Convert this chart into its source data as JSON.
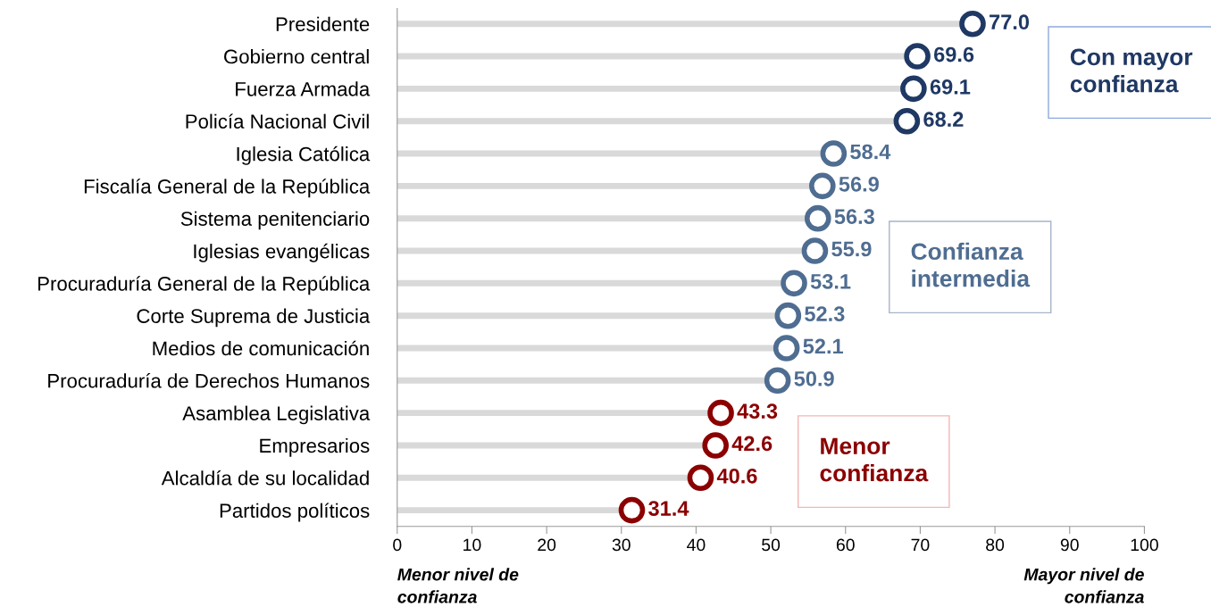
{
  "chart_data": {
    "type": "lollipop",
    "orientation": "horizontal",
    "categories": [
      "Presidente",
      "Gobierno central",
      "Fuerza Armada",
      "Policía Nacional Civil",
      "Iglesia Católica",
      "Fiscalía General de la República",
      "Sistema penitenciario",
      "Iglesias evangélicas",
      "Procuraduría General de la República",
      "Corte Suprema de Justicia",
      "Medios de comunicación",
      "Procuraduría de Derechos Humanos",
      "Asamblea Legislativa",
      "Empresarios",
      "Alcaldía de su localidad",
      "Partidos políticos"
    ],
    "values": [
      77.0,
      69.6,
      69.1,
      68.2,
      58.4,
      56.9,
      56.3,
      55.9,
      53.1,
      52.3,
      52.1,
      50.9,
      43.3,
      42.6,
      40.6,
      31.4
    ],
    "value_labels": [
      "77.0",
      "69.6",
      "69.1",
      "68.2",
      "58.4",
      "56.9",
      "56.3",
      "55.9",
      "53.1",
      "52.3",
      "52.1",
      "50.9",
      "43.3",
      "42.6",
      "40.6",
      "31.4"
    ],
    "colors": [
      "#1f3864",
      "#1f3864",
      "#1f3864",
      "#1f3864",
      "#4f6d91",
      "#4f6d91",
      "#4f6d91",
      "#4f6d91",
      "#4f6d91",
      "#4f6d91",
      "#4f6d91",
      "#4f6d91",
      "#8b0000",
      "#8b0000",
      "#8b0000",
      "#8b0000"
    ],
    "xlim": [
      0,
      100
    ],
    "xticks": [
      0,
      10,
      20,
      30,
      40,
      50,
      60,
      70,
      80,
      90,
      100
    ],
    "marker": "circle",
    "annotations": [
      "Con mayor\nconfianza",
      "Confianza\nintermedia",
      "Menor\nconfianza",
      "Menor nivel de\nconfianza",
      "Mayor nivel de\nconfianza"
    ]
  }
}
